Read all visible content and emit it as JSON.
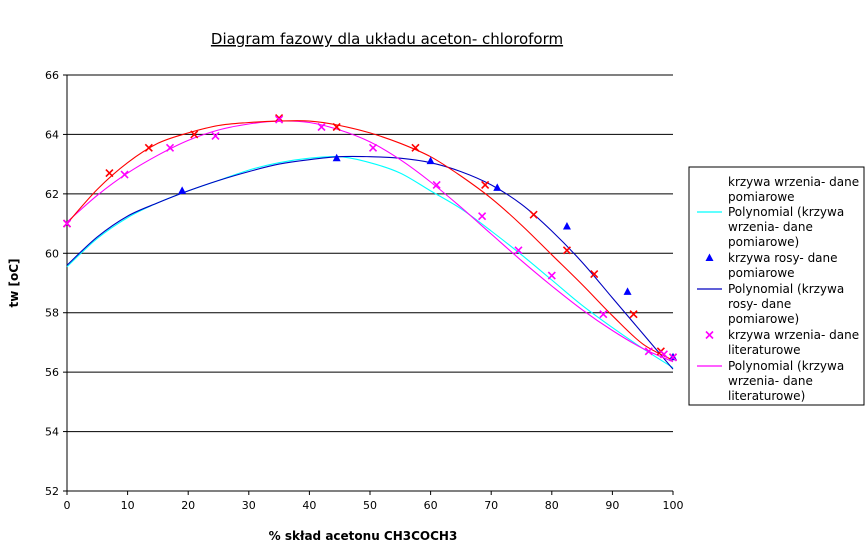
{
  "chart_data": {
    "type": "scatter",
    "title": "Diagram fazowy dla układu aceton- chloroform",
    "xlabel": "% skład acetonu CH3COCH3",
    "ylabel": "tw [oC]",
    "xlim": [
      0,
      100
    ],
    "ylim": [
      52,
      66
    ],
    "xticks": [
      "0",
      "10",
      "20",
      "30",
      "40",
      "50",
      "60",
      "70",
      "80",
      "90",
      "100"
    ],
    "yticks": [
      "52",
      "54",
      "56",
      "58",
      "60",
      "62",
      "64",
      "66"
    ],
    "grid": "horizontal",
    "legend_position": "right",
    "series": [
      {
        "name": "krzywa wrzenia- dane pomiarowe",
        "marker": "x",
        "color": "#ff0000",
        "x": [
          0,
          7,
          13.5,
          21,
          35,
          44.5,
          57.5,
          69,
          77,
          82.5,
          87,
          93.5,
          98,
          100
        ],
        "y": [
          61.0,
          62.7,
          63.55,
          64.0,
          64.55,
          64.25,
          63.55,
          62.3,
          61.3,
          60.1,
          59.3,
          57.95,
          56.7,
          56.5
        ]
      },
      {
        "name": "Polynomial (krzywa wrzenia- dane pomiarowe)",
        "marker": "none",
        "color": "#00ffff",
        "x": [
          0,
          5,
          10,
          15,
          20,
          25,
          30,
          35,
          40,
          45,
          50,
          55,
          60,
          65,
          70,
          75,
          80,
          85,
          90,
          95,
          100
        ],
        "y": [
          59.55,
          60.5,
          61.2,
          61.7,
          62.1,
          62.45,
          62.8,
          63.05,
          63.2,
          63.25,
          63.05,
          62.7,
          62.1,
          61.5,
          60.75,
          59.95,
          59.1,
          58.25,
          57.5,
          56.8,
          56.15
        ]
      },
      {
        "name": "krzywa rosy- dane pomiarowe",
        "marker": "triangle",
        "color": "#0000ff",
        "x": [
          19,
          44.5,
          60,
          71,
          82.5,
          92.5,
          100
        ],
        "y": [
          62.1,
          63.2,
          63.1,
          62.2,
          60.9,
          58.7,
          56.5
        ]
      },
      {
        "name": "Polynomial (krzywa rosy- dane pomiarowe)",
        "marker": "none",
        "color": "#0000c0",
        "x": [
          0,
          5,
          10,
          15,
          20,
          25,
          30,
          35,
          40,
          45,
          50,
          55,
          60,
          65,
          70,
          75,
          80,
          85,
          90,
          95,
          100
        ],
        "y": [
          59.6,
          60.55,
          61.25,
          61.7,
          62.1,
          62.45,
          62.75,
          63.0,
          63.15,
          63.25,
          63.25,
          63.2,
          63.05,
          62.75,
          62.3,
          61.65,
          60.75,
          59.7,
          58.5,
          57.3,
          56.1
        ]
      },
      {
        "name": "krzywa wrzenia- dane literaturowe",
        "marker": "x",
        "color": "#ff00ff",
        "x": [
          0,
          9.5,
          17,
          24.5,
          35,
          42,
          50.5,
          61,
          68.5,
          74.5,
          80,
          88.5,
          96,
          98.5,
          100
        ],
        "y": [
          61.0,
          62.65,
          63.55,
          63.95,
          64.5,
          64.25,
          63.55,
          62.3,
          61.25,
          60.1,
          59.25,
          57.95,
          56.7,
          56.6,
          56.5
        ]
      },
      {
        "name": "Polynomial (krzywa wrzenia- dane literaturowe)",
        "marker": "none",
        "color": "#ff00ff",
        "x": [
          0,
          5,
          10,
          15,
          20,
          25,
          30,
          35,
          40,
          45,
          50,
          55,
          60,
          65,
          70,
          75,
          80,
          85,
          90,
          95,
          100
        ],
        "y": [
          61.05,
          61.95,
          62.7,
          63.3,
          63.8,
          64.15,
          64.35,
          64.45,
          64.4,
          64.15,
          63.75,
          63.15,
          62.4,
          61.55,
          60.65,
          59.75,
          58.9,
          58.1,
          57.4,
          56.8,
          56.35
        ]
      },
      {
        "name": "",
        "marker": "none",
        "color": "#ff0000",
        "x": [
          0,
          5,
          10,
          15,
          20,
          25,
          30,
          35,
          40,
          45,
          50,
          55,
          60,
          65,
          70,
          75,
          80,
          85,
          90,
          95,
          100
        ],
        "y": [
          61.0,
          62.15,
          63.05,
          63.7,
          64.05,
          64.3,
          64.4,
          64.45,
          64.45,
          64.3,
          64.05,
          63.7,
          63.25,
          62.6,
          61.85,
          60.95,
          59.95,
          58.95,
          57.9,
          56.95,
          56.4
        ]
      }
    ],
    "legend": [
      {
        "label": "krzywa wrzenia- dane pomiarowe",
        "marker": "none",
        "line": "none",
        "color": "#ff0000"
      },
      {
        "label": "Polynomial (krzywa wrzenia- dane pomiarowe)",
        "marker": "none",
        "line": "solid",
        "color": "#00ffff"
      },
      {
        "label": "krzywa rosy- dane pomiarowe",
        "marker": "triangle",
        "line": "none",
        "color": "#0000ff"
      },
      {
        "label": "Polynomial (krzywa rosy- dane pomiarowe)",
        "marker": "none",
        "line": "solid",
        "color": "#0000c0"
      },
      {
        "label": "krzywa wrzenia- dane literaturowe",
        "marker": "x",
        "line": "none",
        "color": "#ff00ff"
      },
      {
        "label": "Polynomial (krzywa wrzenia- dane literaturowe)",
        "marker": "none",
        "line": "solid",
        "color": "#ff00ff"
      }
    ]
  }
}
